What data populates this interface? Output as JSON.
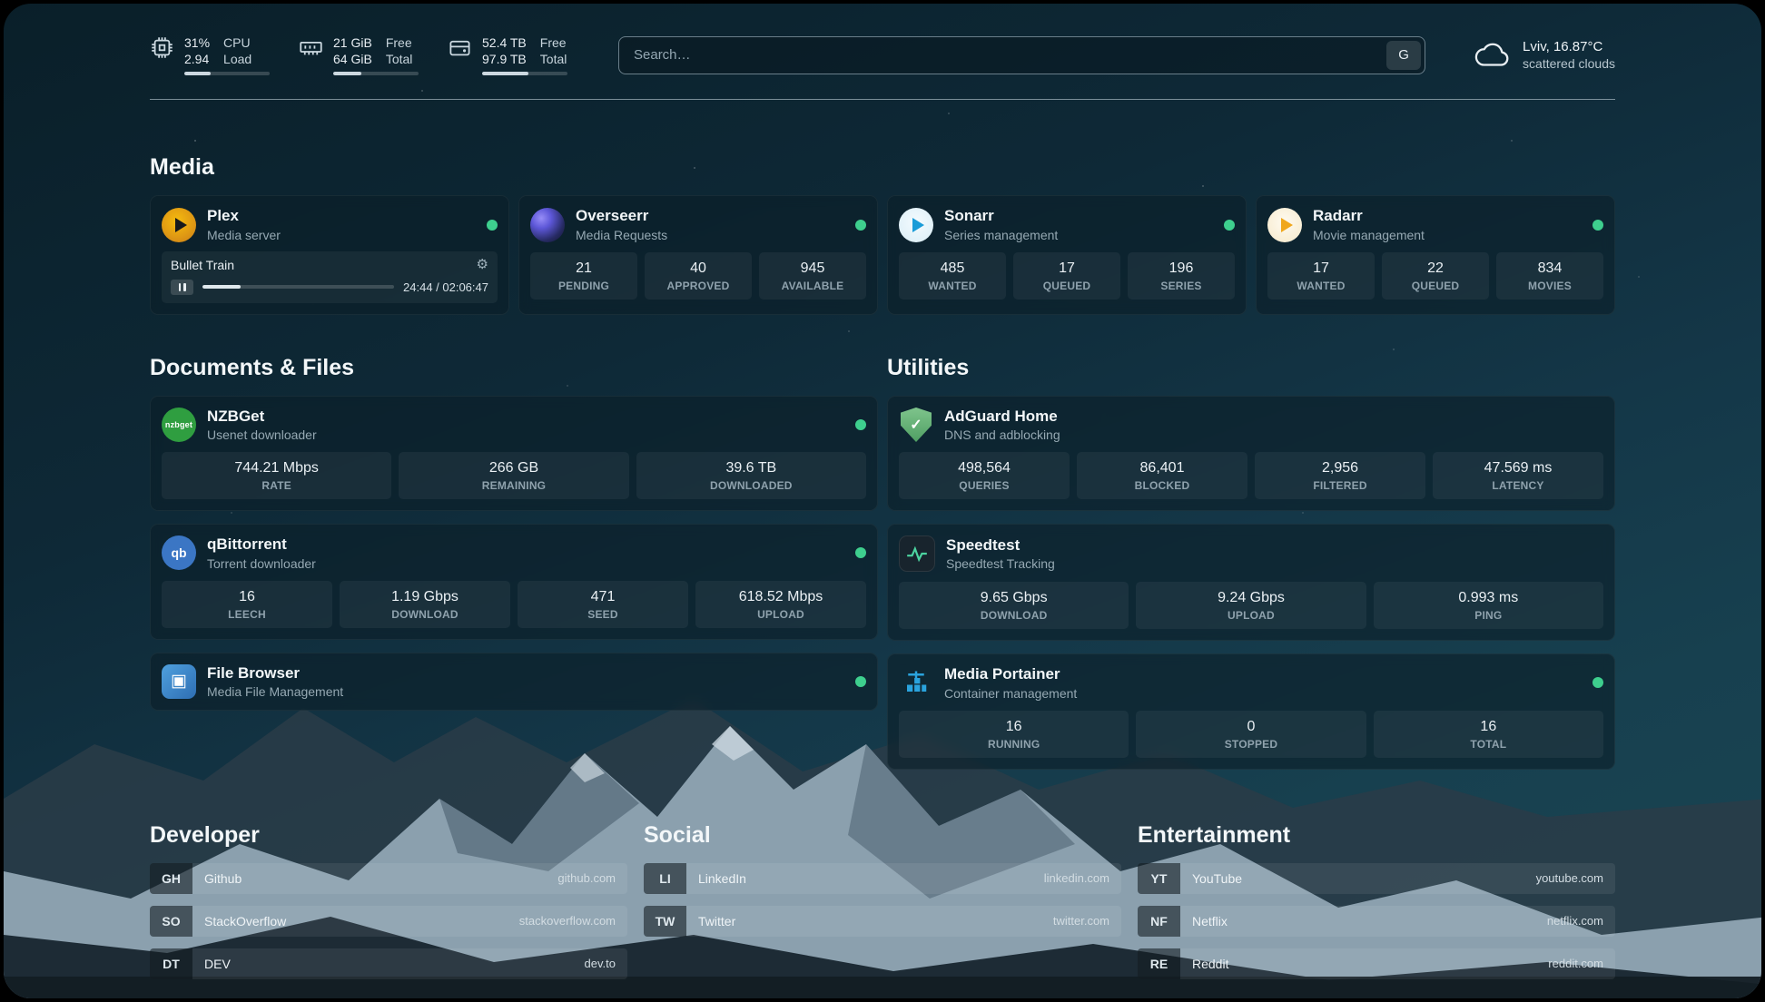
{
  "topbar": {
    "cpu": {
      "percent": "31%",
      "load": "2.94",
      "label_top": "CPU",
      "label_bottom": "Load",
      "progress_pct": 31
    },
    "memory": {
      "free": "21 GiB",
      "total": "64 GiB",
      "label_top": "Free",
      "label_bottom": "Total",
      "progress_pct": 33
    },
    "disk": {
      "free": "52.4 TB",
      "total": "97.9 TB",
      "label_top": "Free",
      "label_bottom": "Total",
      "progress_pct": 54
    },
    "search": {
      "placeholder": "Search…",
      "provider_button": "G"
    },
    "weather": {
      "location": "Lviv, 16.87°C",
      "condition": "scattered clouds"
    }
  },
  "icons": {
    "gear": "⚙",
    "adguard_check": "✓",
    "filebrowser_glyph": "▣",
    "qbittorrent_glyph": "qb",
    "nzbget_glyph": "nzbget"
  },
  "media": {
    "title": "Media",
    "services": [
      {
        "name": "Plex",
        "desc": "Media server",
        "now_playing": {
          "title": "Bullet Train",
          "time": "24:44 / 02:06:47",
          "progress_pct": 20
        }
      },
      {
        "name": "Overseerr",
        "desc": "Media Requests",
        "stats": [
          {
            "value": "21",
            "label": "PENDING"
          },
          {
            "value": "40",
            "label": "APPROVED"
          },
          {
            "value": "945",
            "label": "AVAILABLE"
          }
        ]
      },
      {
        "name": "Sonarr",
        "desc": "Series management",
        "stats": [
          {
            "value": "485",
            "label": "WANTED"
          },
          {
            "value": "17",
            "label": "QUEUED"
          },
          {
            "value": "196",
            "label": "SERIES"
          }
        ]
      },
      {
        "name": "Radarr",
        "desc": "Movie management",
        "stats": [
          {
            "value": "17",
            "label": "WANTED"
          },
          {
            "value": "22",
            "label": "QUEUED"
          },
          {
            "value": "834",
            "label": "MOVIES"
          }
        ]
      }
    ]
  },
  "documents": {
    "title": "Documents & Files",
    "services": [
      {
        "name": "NZBGet",
        "desc": "Usenet downloader",
        "stats": [
          {
            "value": "744.21 Mbps",
            "label": "RATE"
          },
          {
            "value": "266 GB",
            "label": "REMAINING"
          },
          {
            "value": "39.6 TB",
            "label": "DOWNLOADED"
          }
        ]
      },
      {
        "name": "qBittorrent",
        "desc": "Torrent downloader",
        "stats": [
          {
            "value": "16",
            "label": "LEECH"
          },
          {
            "value": "1.19 Gbps",
            "label": "DOWNLOAD"
          },
          {
            "value": "471",
            "label": "SEED"
          },
          {
            "value": "618.52 Mbps",
            "label": "UPLOAD"
          }
        ]
      },
      {
        "name": "File Browser",
        "desc": "Media File Management",
        "stats": []
      }
    ]
  },
  "utilities": {
    "title": "Utilities",
    "services": [
      {
        "name": "AdGuard Home",
        "desc": "DNS and adblocking",
        "stats": [
          {
            "value": "498,564",
            "label": "QUERIES"
          },
          {
            "value": "86,401",
            "label": "BLOCKED"
          },
          {
            "value": "2,956",
            "label": "FILTERED"
          },
          {
            "value": "47.569 ms",
            "label": "LATENCY"
          }
        ]
      },
      {
        "name": "Speedtest",
        "desc": "Speedtest Tracking",
        "stats": [
          {
            "value": "9.65 Gbps",
            "label": "DOWNLOAD"
          },
          {
            "value": "9.24 Gbps",
            "label": "UPLOAD"
          },
          {
            "value": "0.993 ms",
            "label": "PING"
          }
        ]
      },
      {
        "name": "Media Portainer",
        "desc": "Container management",
        "stats": [
          {
            "value": "16",
            "label": "RUNNING"
          },
          {
            "value": "0",
            "label": "STOPPED"
          },
          {
            "value": "16",
            "label": "TOTAL"
          }
        ]
      }
    ]
  },
  "bookmarks": {
    "developer": {
      "title": "Developer",
      "items": [
        {
          "abbr": "GH",
          "name": "Github",
          "url": "github.com"
        },
        {
          "abbr": "SO",
          "name": "StackOverflow",
          "url": "stackoverflow.com"
        },
        {
          "abbr": "DT",
          "name": "DEV",
          "url": "dev.to"
        }
      ]
    },
    "social": {
      "title": "Social",
      "items": [
        {
          "abbr": "LI",
          "name": "LinkedIn",
          "url": "linkedin.com"
        },
        {
          "abbr": "TW",
          "name": "Twitter",
          "url": "twitter.com"
        }
      ]
    },
    "entertainment": {
      "title": "Entertainment",
      "items": [
        {
          "abbr": "YT",
          "name": "YouTube",
          "url": "youtube.com"
        },
        {
          "abbr": "NF",
          "name": "Netflix",
          "url": "netflix.com"
        },
        {
          "abbr": "RE",
          "name": "Reddit",
          "url": "reddit.com"
        }
      ]
    }
  }
}
